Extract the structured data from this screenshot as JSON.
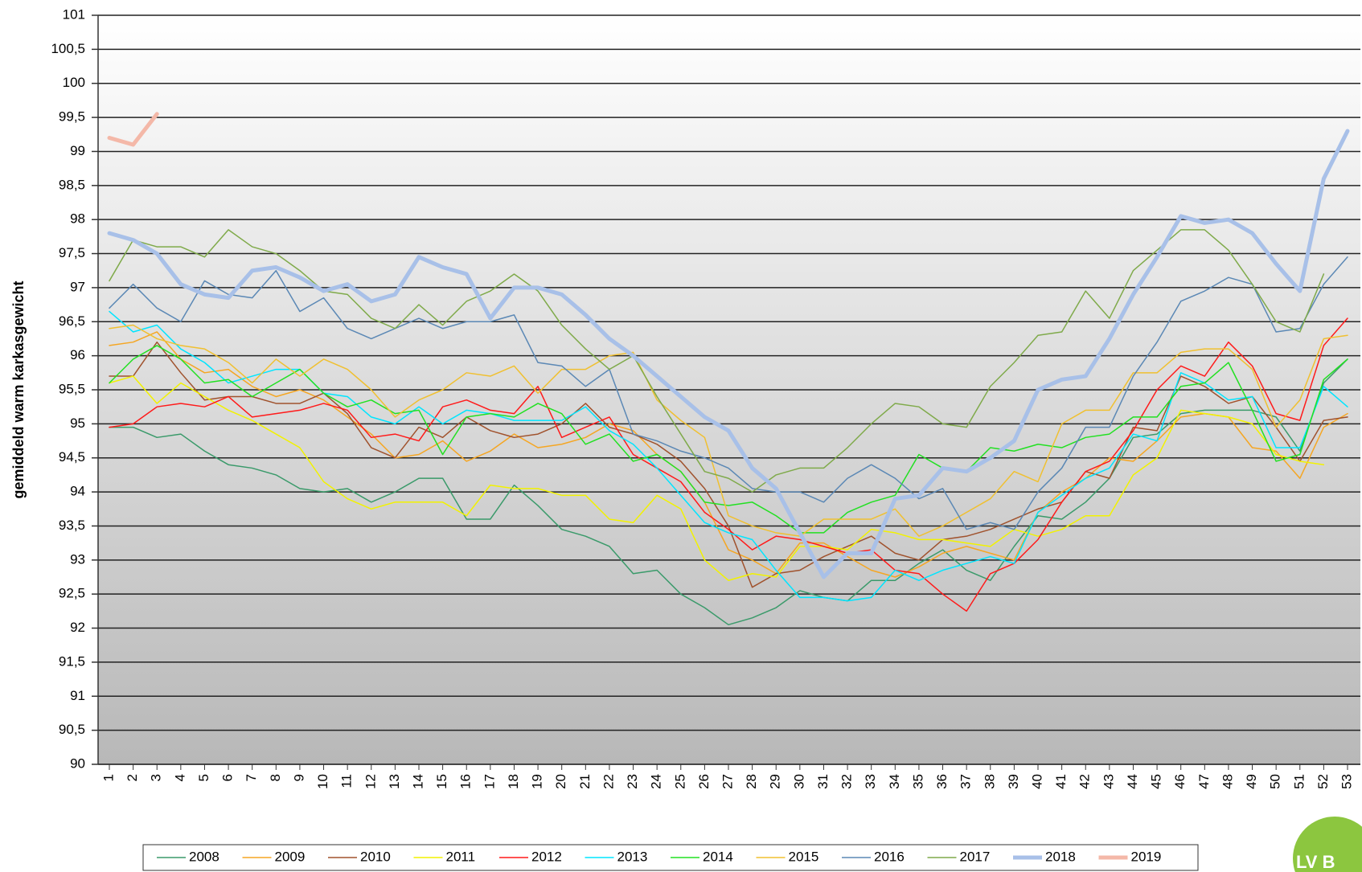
{
  "chart_data": {
    "type": "line",
    "ylabel": "gemiddeld warm karkasgewicht",
    "logo": "LV B",
    "grid": true,
    "legend": "bottom",
    "ylim": [
      90,
      101
    ],
    "yticks": [
      90,
      {
        "value": 90.5,
        "label": "90,5"
      },
      91,
      {
        "value": 91.5,
        "label": "91,5"
      },
      92,
      {
        "value": 92.5,
        "label": "92,5"
      },
      93,
      {
        "value": 93.5,
        "label": "93,5"
      },
      94,
      {
        "value": 94.5,
        "label": "94,5"
      },
      95,
      {
        "value": 95.5,
        "label": "95,5"
      },
      96,
      {
        "value": 96.5,
        "label": "96,5"
      },
      97,
      {
        "value": 97.5,
        "label": "97,5"
      },
      98,
      {
        "value": 98.5,
        "label": "98,5"
      },
      99,
      {
        "value": 99.5,
        "label": "99,5"
      },
      100,
      {
        "value": 100.5,
        "label": "100,5"
      },
      101
    ],
    "categories": [
      "1",
      "2",
      "3",
      "4",
      "5",
      "6",
      "7",
      "8",
      "9",
      "10",
      "11",
      "12",
      "13",
      "14",
      "15",
      "16",
      "17",
      "18",
      "19",
      "20",
      "21",
      "22",
      "23",
      "24",
      "25",
      "26",
      "27",
      "28",
      "29",
      "30",
      "31",
      "32",
      "33",
      "34",
      "35",
      "36",
      "37",
      "38",
      "39",
      "40",
      "41",
      "42",
      "43",
      "44",
      "45",
      "46",
      "47",
      "48",
      "49",
      "50",
      "51",
      "52",
      "53"
    ],
    "series": [
      {
        "name": "2008",
        "color": "#3a9a6a",
        "line_width": 1.5,
        "values": [
          94.95,
          94.95,
          94.8,
          94.85,
          94.6,
          94.4,
          94.35,
          94.25,
          94.05,
          94.0,
          94.05,
          93.85,
          94.0,
          94.2,
          94.2,
          93.6,
          93.6,
          94.1,
          93.8,
          93.45,
          93.35,
          93.2,
          92.8,
          92.85,
          92.5,
          92.3,
          92.05,
          92.15,
          92.3,
          92.55,
          92.45,
          92.4,
          92.7,
          92.7,
          92.95,
          93.15,
          92.85,
          92.7,
          93.2,
          93.65,
          93.6,
          93.85,
          94.2,
          94.8,
          94.85,
          95.15,
          95.2,
          95.2,
          95.2,
          95.1,
          94.6,
          95.6,
          95.95
        ]
      },
      {
        "name": "2009",
        "color": "#f5a623",
        "line_width": 1.5,
        "values": [
          96.15,
          96.2,
          96.35,
          95.95,
          95.75,
          95.8,
          95.55,
          95.4,
          95.5,
          95.35,
          95.1,
          94.85,
          94.5,
          94.55,
          94.75,
          94.45,
          94.6,
          94.85,
          94.65,
          94.7,
          94.8,
          95.0,
          94.9,
          94.55,
          94.3,
          93.85,
          93.15,
          93.0,
          92.8,
          93.25,
          93.25,
          93.05,
          92.85,
          92.75,
          92.9,
          93.1,
          93.2,
          93.1,
          93.0,
          93.7,
          94.0,
          94.2,
          94.5,
          94.45,
          94.75,
          95.1,
          95.15,
          95.1,
          94.65,
          94.6,
          94.2,
          94.95,
          95.15
        ]
      },
      {
        "name": "2010",
        "color": "#a0522d",
        "line_width": 1.5,
        "values": [
          95.7,
          95.7,
          96.2,
          95.75,
          95.35,
          95.4,
          95.4,
          95.3,
          95.3,
          95.45,
          95.15,
          94.65,
          94.5,
          94.95,
          94.8,
          95.1,
          94.9,
          94.8,
          94.85,
          95.0,
          95.3,
          94.95,
          94.85,
          94.7,
          94.45,
          94.05,
          93.5,
          92.6,
          92.8,
          92.85,
          93.05,
          93.2,
          93.35,
          93.1,
          93.0,
          93.3,
          93.35,
          93.45,
          93.6,
          93.75,
          93.85,
          94.3,
          94.2,
          94.95,
          94.9,
          95.7,
          95.55,
          95.3,
          95.4,
          94.95,
          94.45,
          95.05,
          95.1
        ]
      },
      {
        "name": "2011",
        "color": "#f2f200",
        "line_width": 1.5,
        "values": [
          95.6,
          95.7,
          95.3,
          95.6,
          95.4,
          95.2,
          95.05,
          94.85,
          94.65,
          94.15,
          93.9,
          93.75,
          93.85,
          93.85,
          93.85,
          93.65,
          94.1,
          94.05,
          94.05,
          93.95,
          93.95,
          93.6,
          93.55,
          93.95,
          93.75,
          93.0,
          92.7,
          92.8,
          92.75,
          93.2,
          93.2,
          93.15,
          93.45,
          93.4,
          93.3,
          93.3,
          93.25,
          93.2,
          93.45,
          93.35,
          93.45,
          93.65,
          93.65,
          94.25,
          94.5,
          95.2,
          95.15,
          95.1,
          95.0,
          94.55,
          94.45,
          94.4,
          null
        ]
      },
      {
        "name": "2012",
        "color": "#ff1a1a",
        "line_width": 1.5,
        "values": [
          94.95,
          95.0,
          95.25,
          95.3,
          95.25,
          95.4,
          95.1,
          95.15,
          95.2,
          95.3,
          95.2,
          94.8,
          94.85,
          94.75,
          95.25,
          95.35,
          95.2,
          95.15,
          95.55,
          94.8,
          94.95,
          95.1,
          94.55,
          94.35,
          94.15,
          93.7,
          93.45,
          93.15,
          93.35,
          93.3,
          93.2,
          93.1,
          93.15,
          92.85,
          92.8,
          92.5,
          92.25,
          92.8,
          92.95,
          93.3,
          93.85,
          94.3,
          94.45,
          94.9,
          95.5,
          95.85,
          95.7,
          96.2,
          95.85,
          95.15,
          95.05,
          96.15,
          96.55
        ]
      },
      {
        "name": "2013",
        "color": "#00e5ff",
        "line_width": 1.5,
        "values": [
          96.65,
          96.35,
          96.45,
          96.1,
          95.9,
          95.6,
          95.7,
          95.8,
          95.8,
          95.45,
          95.4,
          95.1,
          95.0,
          95.25,
          95.0,
          95.2,
          95.15,
          95.05,
          95.05,
          95.05,
          95.25,
          94.9,
          94.7,
          94.35,
          93.95,
          93.55,
          93.4,
          93.3,
          92.85,
          92.45,
          92.45,
          92.4,
          92.45,
          92.85,
          92.7,
          92.85,
          92.95,
          93.05,
          92.95,
          93.7,
          93.95,
          94.2,
          94.35,
          94.85,
          94.75,
          95.75,
          95.6,
          95.35,
          95.4,
          94.65,
          94.65,
          95.55,
          95.25
        ]
      },
      {
        "name": "2014",
        "color": "#22e022",
        "line_width": 1.5,
        "values": [
          95.6,
          95.95,
          96.15,
          95.95,
          95.6,
          95.65,
          95.4,
          95.6,
          95.8,
          95.45,
          95.25,
          95.35,
          95.15,
          95.2,
          94.55,
          95.1,
          95.15,
          95.1,
          95.3,
          95.15,
          94.7,
          94.85,
          94.45,
          94.55,
          94.3,
          93.85,
          93.8,
          93.85,
          93.65,
          93.4,
          93.4,
          93.7,
          93.85,
          93.95,
          94.55,
          94.35,
          94.3,
          94.65,
          94.6,
          94.7,
          94.65,
          94.8,
          94.85,
          95.1,
          95.1,
          95.55,
          95.6,
          95.9,
          95.2,
          94.45,
          94.55,
          95.65,
          95.95
        ]
      },
      {
        "name": "2015",
        "color": "#f0c030",
        "line_width": 1.5,
        "values": [
          96.4,
          96.45,
          96.25,
          96.15,
          96.1,
          95.9,
          95.6,
          95.95,
          95.7,
          95.95,
          95.8,
          95.5,
          95.1,
          95.35,
          95.5,
          95.75,
          95.7,
          95.85,
          95.45,
          95.8,
          95.8,
          96.0,
          96.05,
          95.35,
          95.05,
          94.8,
          93.65,
          93.5,
          93.4,
          93.35,
          93.6,
          93.6,
          93.6,
          93.75,
          93.35,
          93.5,
          93.7,
          93.9,
          94.3,
          94.15,
          95.0,
          95.2,
          95.2,
          95.75,
          95.75,
          96.05,
          96.1,
          96.1,
          95.8,
          94.95,
          95.35,
          96.25,
          96.3
        ]
      },
      {
        "name": "2016",
        "color": "#5b88b5",
        "line_width": 1.5,
        "values": [
          96.7,
          97.05,
          96.7,
          96.5,
          97.1,
          96.9,
          96.85,
          97.25,
          96.65,
          96.85,
          96.4,
          96.25,
          96.4,
          96.55,
          96.4,
          96.5,
          96.5,
          96.6,
          95.9,
          95.85,
          95.55,
          95.8,
          94.85,
          94.75,
          94.6,
          94.5,
          94.35,
          94.05,
          94.0,
          94.0,
          93.85,
          94.2,
          94.4,
          94.2,
          93.9,
          94.05,
          93.45,
          93.55,
          93.45,
          94.0,
          94.35,
          94.95,
          94.95,
          95.7,
          96.2,
          96.8,
          96.95,
          97.15,
          97.05,
          96.35,
          96.4,
          97.05,
          97.45
        ]
      },
      {
        "name": "2017",
        "color": "#7faa4a",
        "line_width": 1.5,
        "values": [
          97.1,
          97.7,
          97.6,
          97.6,
          97.45,
          97.85,
          97.6,
          97.5,
          97.25,
          96.95,
          96.9,
          96.55,
          96.4,
          96.75,
          96.45,
          96.8,
          96.95,
          97.2,
          96.95,
          96.45,
          96.1,
          95.8,
          96.0,
          95.4,
          94.85,
          94.3,
          94.2,
          94.0,
          94.25,
          94.35,
          94.35,
          94.65,
          95.0,
          95.3,
          95.25,
          95.0,
          94.95,
          95.55,
          95.9,
          96.3,
          96.35,
          96.95,
          96.55,
          97.25,
          97.55,
          97.85,
          97.85,
          97.55,
          97.05,
          96.5,
          96.35,
          97.2,
          null
        ]
      },
      {
        "name": "2018",
        "color": "#a8c0e8",
        "line_width": 5,
        "values": [
          97.8,
          97.7,
          97.5,
          97.05,
          96.9,
          96.85,
          97.25,
          97.3,
          97.15,
          96.95,
          97.05,
          96.8,
          96.9,
          97.45,
          97.3,
          97.2,
          96.55,
          97.0,
          97.0,
          96.9,
          96.6,
          96.25,
          96.0,
          95.7,
          95.4,
          95.1,
          94.9,
          94.35,
          94.05,
          93.4,
          92.75,
          93.1,
          93.1,
          93.9,
          93.95,
          94.35,
          94.3,
          94.5,
          94.75,
          95.5,
          95.65,
          95.7,
          96.25,
          96.9,
          97.45,
          98.05,
          97.95,
          98.0,
          97.8,
          97.35,
          96.95,
          98.6,
          99.3
        ]
      },
      {
        "name": "2019",
        "color": "#f4b8a8",
        "line_width": 5,
        "values": [
          99.2,
          99.1,
          99.55,
          null,
          null,
          null,
          null,
          null,
          null,
          null,
          null,
          null,
          null,
          null,
          null,
          null,
          null,
          null,
          null,
          null,
          null,
          null,
          null,
          null,
          null,
          null,
          null,
          null,
          null,
          null,
          null,
          null,
          null,
          null,
          null,
          null,
          null,
          null,
          null,
          null,
          null,
          null,
          null,
          null,
          null,
          null,
          null,
          null,
          null,
          null,
          null,
          null,
          null
        ]
      }
    ]
  }
}
